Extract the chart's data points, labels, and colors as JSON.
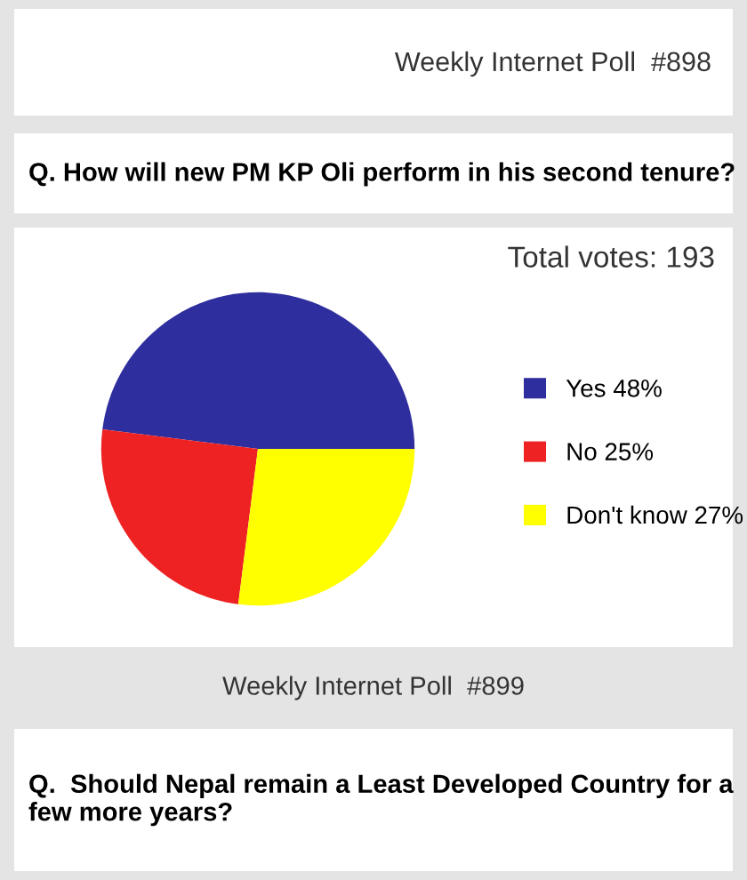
{
  "chart_data": {
    "type": "pie",
    "title": "Weekly Internet Poll  #898",
    "subtitle": "Q. How will new PM KP Oli perform in his second tenure?",
    "categories": [
      "Yes 48%",
      "No 25%",
      "Don't know 27%"
    ],
    "values": [
      48,
      25,
      27
    ],
    "colors": [
      "#2e2e9e",
      "#ee2222",
      "#ffff00"
    ],
    "legend": "right",
    "annotations": [
      "Total votes: 193",
      "Weekly Internet Poll  #899",
      "Q.  Should Nepal remain a Least Developed Country for a few more years?"
    ]
  }
}
